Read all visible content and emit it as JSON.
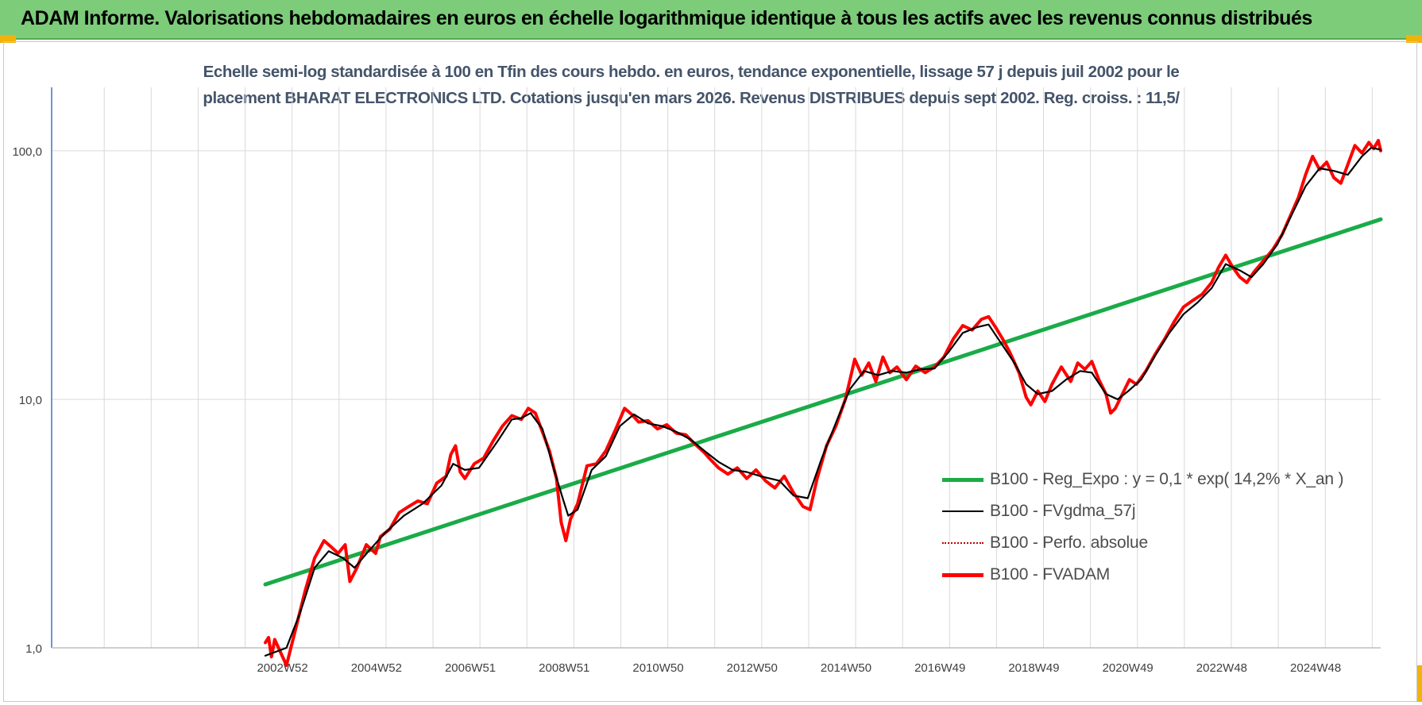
{
  "banner": {
    "title": "ADAM Informe. Valorisations hebdomadaires en euros en échelle logarithmique identique à tous les actifs avec les revenus connus distribués"
  },
  "colors": {
    "banner_bg": "#7ccc7a",
    "accent_corner": "#f2b20c",
    "regression": "#1aab48",
    "smoothed": "#000000",
    "perfo": "#c00000",
    "fvadam": "#ff0000",
    "title_text": "#44546a",
    "grid": "#d9d9d9",
    "axis": "#4472c4"
  },
  "chart_data": {
    "type": "line",
    "title_lines": [
      "Echelle semi-log standardisée à 100 en Tfin des cours hebdo. en euros, tendance exponentielle, lissage 57 j depuis juil 2002 pour le",
      "placement BHARAT ELECTRONICS LTD. Cotations jusqu'en mars 2026. Revenus DISTRIBUES depuis sept 2002. Reg. croiss. : 11,5/"
    ],
    "y_scale": "log",
    "ylim": [
      1,
      180
    ],
    "y_ticks": [
      {
        "value": 1,
        "label": "1,0"
      },
      {
        "value": 10,
        "label": "10,0"
      },
      {
        "value": 100,
        "label": "100,0"
      }
    ],
    "xlim": [
      1998.0,
      2026.3
    ],
    "x_ticks": [
      {
        "t": 2003.0,
        "label": "2002W52"
      },
      {
        "t": 2005.0,
        "label": "2004W52"
      },
      {
        "t": 2007.0,
        "label": "2006W51"
      },
      {
        "t": 2009.0,
        "label": "2008W51"
      },
      {
        "t": 2011.0,
        "label": "2010W50"
      },
      {
        "t": 2013.0,
        "label": "2012W50"
      },
      {
        "t": 2015.0,
        "label": "2014W50"
      },
      {
        "t": 2017.0,
        "label": "2016W49"
      },
      {
        "t": 2019.0,
        "label": "2018W49"
      },
      {
        "t": 2021.0,
        "label": "2020W49"
      },
      {
        "t": 2023.0,
        "label": "2022W48"
      },
      {
        "t": 2025.0,
        "label": "2024W48"
      }
    ],
    "grid": true,
    "legend_position": "right",
    "series": [
      {
        "name": "B100 - Reg_Expo : y = 0,1 * exp( 14,2% *  X_an )",
        "style": "regression",
        "points": [
          [
            2002.55,
            1.8
          ],
          [
            2026.3,
            53.0
          ]
        ]
      },
      {
        "name": "B100 - FVgdma_57j",
        "style": "smoothed",
        "points": [
          [
            2002.55,
            0.93
          ],
          [
            2003.0,
            1.0
          ],
          [
            2003.3,
            1.4
          ],
          [
            2003.6,
            2.1
          ],
          [
            2003.9,
            2.45
          ],
          [
            2004.2,
            2.3
          ],
          [
            2004.45,
            2.1
          ],
          [
            2004.75,
            2.45
          ],
          [
            2005.1,
            2.9
          ],
          [
            2005.5,
            3.4
          ],
          [
            2005.9,
            3.8
          ],
          [
            2006.3,
            4.5
          ],
          [
            2006.55,
            5.5
          ],
          [
            2006.8,
            5.2
          ],
          [
            2007.1,
            5.3
          ],
          [
            2007.5,
            6.8
          ],
          [
            2007.8,
            8.3
          ],
          [
            2008.0,
            8.4
          ],
          [
            2008.2,
            8.8
          ],
          [
            2008.45,
            7.6
          ],
          [
            2008.7,
            5.2
          ],
          [
            2008.9,
            3.9
          ],
          [
            2009.0,
            3.4
          ],
          [
            2009.2,
            3.6
          ],
          [
            2009.5,
            5.2
          ],
          [
            2009.8,
            5.9
          ],
          [
            2010.1,
            7.8
          ],
          [
            2010.4,
            8.7
          ],
          [
            2010.7,
            8.0
          ],
          [
            2011.0,
            7.8
          ],
          [
            2011.3,
            7.4
          ],
          [
            2011.6,
            6.9
          ],
          [
            2011.9,
            6.2
          ],
          [
            2012.2,
            5.6
          ],
          [
            2012.5,
            5.2
          ],
          [
            2012.8,
            5.1
          ],
          [
            2013.1,
            4.9
          ],
          [
            2013.5,
            4.7
          ],
          [
            2013.8,
            4.1
          ],
          [
            2014.1,
            4.0
          ],
          [
            2014.4,
            5.8
          ],
          [
            2014.75,
            8.5
          ],
          [
            2015.0,
            11.0
          ],
          [
            2015.3,
            13.0
          ],
          [
            2015.6,
            12.5
          ],
          [
            2015.9,
            13.0
          ],
          [
            2016.2,
            12.8
          ],
          [
            2016.5,
            13.2
          ],
          [
            2016.8,
            13.3
          ],
          [
            2017.1,
            15.5
          ],
          [
            2017.4,
            18.5
          ],
          [
            2017.7,
            19.5
          ],
          [
            2017.95,
            20.0
          ],
          [
            2018.2,
            17.0
          ],
          [
            2018.5,
            14.0
          ],
          [
            2018.75,
            11.5
          ],
          [
            2019.0,
            10.5
          ],
          [
            2019.3,
            10.8
          ],
          [
            2019.6,
            12.0
          ],
          [
            2019.9,
            13.0
          ],
          [
            2020.15,
            12.8
          ],
          [
            2020.45,
            10.5
          ],
          [
            2020.7,
            10.0
          ],
          [
            2020.9,
            10.7
          ],
          [
            2021.2,
            12.0
          ],
          [
            2021.5,
            15.0
          ],
          [
            2021.8,
            18.5
          ],
          [
            2022.1,
            22.0
          ],
          [
            2022.4,
            24.5
          ],
          [
            2022.7,
            28.0
          ],
          [
            2023.0,
            35.0
          ],
          [
            2023.3,
            33.0
          ],
          [
            2023.55,
            31.0
          ],
          [
            2023.8,
            35.0
          ],
          [
            2024.1,
            42.0
          ],
          [
            2024.4,
            55.0
          ],
          [
            2024.7,
            72.0
          ],
          [
            2025.0,
            85.0
          ],
          [
            2025.3,
            83.0
          ],
          [
            2025.6,
            80.0
          ],
          [
            2025.9,
            95.0
          ],
          [
            2026.1,
            103.0
          ],
          [
            2026.3,
            101.0
          ]
        ]
      },
      {
        "name": "B100 - Perfo. absolue",
        "style": "perfo",
        "points": []
      },
      {
        "name": "B100 - FVADAM",
        "style": "fvadam",
        "points": [
          [
            2002.55,
            1.05
          ],
          [
            2002.62,
            1.1
          ],
          [
            2002.68,
            0.92
          ],
          [
            2002.75,
            1.08
          ],
          [
            2003.0,
            0.85
          ],
          [
            2003.2,
            1.2
          ],
          [
            2003.4,
            1.7
          ],
          [
            2003.6,
            2.3
          ],
          [
            2003.8,
            2.7
          ],
          [
            2003.95,
            2.55
          ],
          [
            2004.1,
            2.4
          ],
          [
            2004.25,
            2.6
          ],
          [
            2004.35,
            1.85
          ],
          [
            2004.5,
            2.1
          ],
          [
            2004.7,
            2.6
          ],
          [
            2004.9,
            2.4
          ],
          [
            2005.0,
            2.8
          ],
          [
            2005.2,
            3.0
          ],
          [
            2005.4,
            3.5
          ],
          [
            2005.6,
            3.7
          ],
          [
            2005.8,
            3.9
          ],
          [
            2006.0,
            3.8
          ],
          [
            2006.2,
            4.6
          ],
          [
            2006.4,
            4.9
          ],
          [
            2006.5,
            6.0
          ],
          [
            2006.6,
            6.5
          ],
          [
            2006.7,
            5.1
          ],
          [
            2006.8,
            4.8
          ],
          [
            2007.0,
            5.5
          ],
          [
            2007.2,
            5.8
          ],
          [
            2007.4,
            6.8
          ],
          [
            2007.6,
            7.8
          ],
          [
            2007.8,
            8.6
          ],
          [
            2008.0,
            8.3
          ],
          [
            2008.15,
            9.2
          ],
          [
            2008.3,
            8.8
          ],
          [
            2008.45,
            7.4
          ],
          [
            2008.6,
            6.2
          ],
          [
            2008.75,
            4.8
          ],
          [
            2008.85,
            3.2
          ],
          [
            2008.95,
            2.7
          ],
          [
            2009.05,
            3.3
          ],
          [
            2009.2,
            3.8
          ],
          [
            2009.4,
            5.4
          ],
          [
            2009.6,
            5.5
          ],
          [
            2009.8,
            6.2
          ],
          [
            2010.0,
            7.5
          ],
          [
            2010.2,
            9.2
          ],
          [
            2010.35,
            8.7
          ],
          [
            2010.5,
            8.1
          ],
          [
            2010.7,
            8.2
          ],
          [
            2010.9,
            7.6
          ],
          [
            2011.1,
            7.9
          ],
          [
            2011.3,
            7.3
          ],
          [
            2011.5,
            7.2
          ],
          [
            2011.7,
            6.6
          ],
          [
            2011.9,
            6.1
          ],
          [
            2012.0,
            5.8
          ],
          [
            2012.2,
            5.3
          ],
          [
            2012.4,
            5.0
          ],
          [
            2012.6,
            5.3
          ],
          [
            2012.8,
            4.8
          ],
          [
            2013.0,
            5.2
          ],
          [
            2013.2,
            4.7
          ],
          [
            2013.4,
            4.4
          ],
          [
            2013.6,
            4.9
          ],
          [
            2013.8,
            4.2
          ],
          [
            2014.0,
            3.7
          ],
          [
            2014.15,
            3.6
          ],
          [
            2014.3,
            4.8
          ],
          [
            2014.5,
            6.5
          ],
          [
            2014.7,
            7.8
          ],
          [
            2014.9,
            10.0
          ],
          [
            2015.0,
            12.0
          ],
          [
            2015.1,
            14.5
          ],
          [
            2015.25,
            12.5
          ],
          [
            2015.4,
            14.0
          ],
          [
            2015.55,
            11.8
          ],
          [
            2015.7,
            14.8
          ],
          [
            2015.85,
            12.8
          ],
          [
            2016.0,
            13.5
          ],
          [
            2016.2,
            12.0
          ],
          [
            2016.4,
            13.6
          ],
          [
            2016.6,
            12.8
          ],
          [
            2016.8,
            13.5
          ],
          [
            2017.0,
            14.8
          ],
          [
            2017.2,
            17.5
          ],
          [
            2017.4,
            19.8
          ],
          [
            2017.6,
            19.0
          ],
          [
            2017.8,
            21.0
          ],
          [
            2017.95,
            21.5
          ],
          [
            2018.1,
            19.5
          ],
          [
            2018.25,
            17.5
          ],
          [
            2018.4,
            15.5
          ],
          [
            2018.6,
            12.8
          ],
          [
            2018.75,
            10.2
          ],
          [
            2018.85,
            9.5
          ],
          [
            2019.0,
            10.8
          ],
          [
            2019.15,
            9.8
          ],
          [
            2019.3,
            11.5
          ],
          [
            2019.5,
            13.5
          ],
          [
            2019.7,
            11.8
          ],
          [
            2019.85,
            14.0
          ],
          [
            2020.0,
            13.2
          ],
          [
            2020.15,
            14.2
          ],
          [
            2020.3,
            12.0
          ],
          [
            2020.45,
            10.5
          ],
          [
            2020.55,
            8.8
          ],
          [
            2020.65,
            9.2
          ],
          [
            2020.8,
            10.5
          ],
          [
            2020.95,
            12.0
          ],
          [
            2021.1,
            11.5
          ],
          [
            2021.3,
            13.0
          ],
          [
            2021.5,
            15.2
          ],
          [
            2021.7,
            17.5
          ],
          [
            2021.9,
            20.5
          ],
          [
            2022.1,
            23.5
          ],
          [
            2022.3,
            25.0
          ],
          [
            2022.5,
            26.5
          ],
          [
            2022.7,
            29.5
          ],
          [
            2022.85,
            34.0
          ],
          [
            2023.0,
            38.0
          ],
          [
            2023.15,
            34.0
          ],
          [
            2023.3,
            31.0
          ],
          [
            2023.45,
            29.5
          ],
          [
            2023.6,
            32.5
          ],
          [
            2023.8,
            36.0
          ],
          [
            2024.0,
            40.0
          ],
          [
            2024.2,
            46.0
          ],
          [
            2024.4,
            56.0
          ],
          [
            2024.55,
            65.0
          ],
          [
            2024.7,
            80.0
          ],
          [
            2024.85,
            95.0
          ],
          [
            2025.0,
            84.0
          ],
          [
            2025.15,
            90.0
          ],
          [
            2025.3,
            78.0
          ],
          [
            2025.45,
            74.0
          ],
          [
            2025.6,
            88.0
          ],
          [
            2025.75,
            105.0
          ],
          [
            2025.9,
            98.0
          ],
          [
            2026.05,
            108.0
          ],
          [
            2026.15,
            102.0
          ],
          [
            2026.25,
            110.0
          ],
          [
            2026.3,
            100.0
          ]
        ]
      }
    ]
  }
}
